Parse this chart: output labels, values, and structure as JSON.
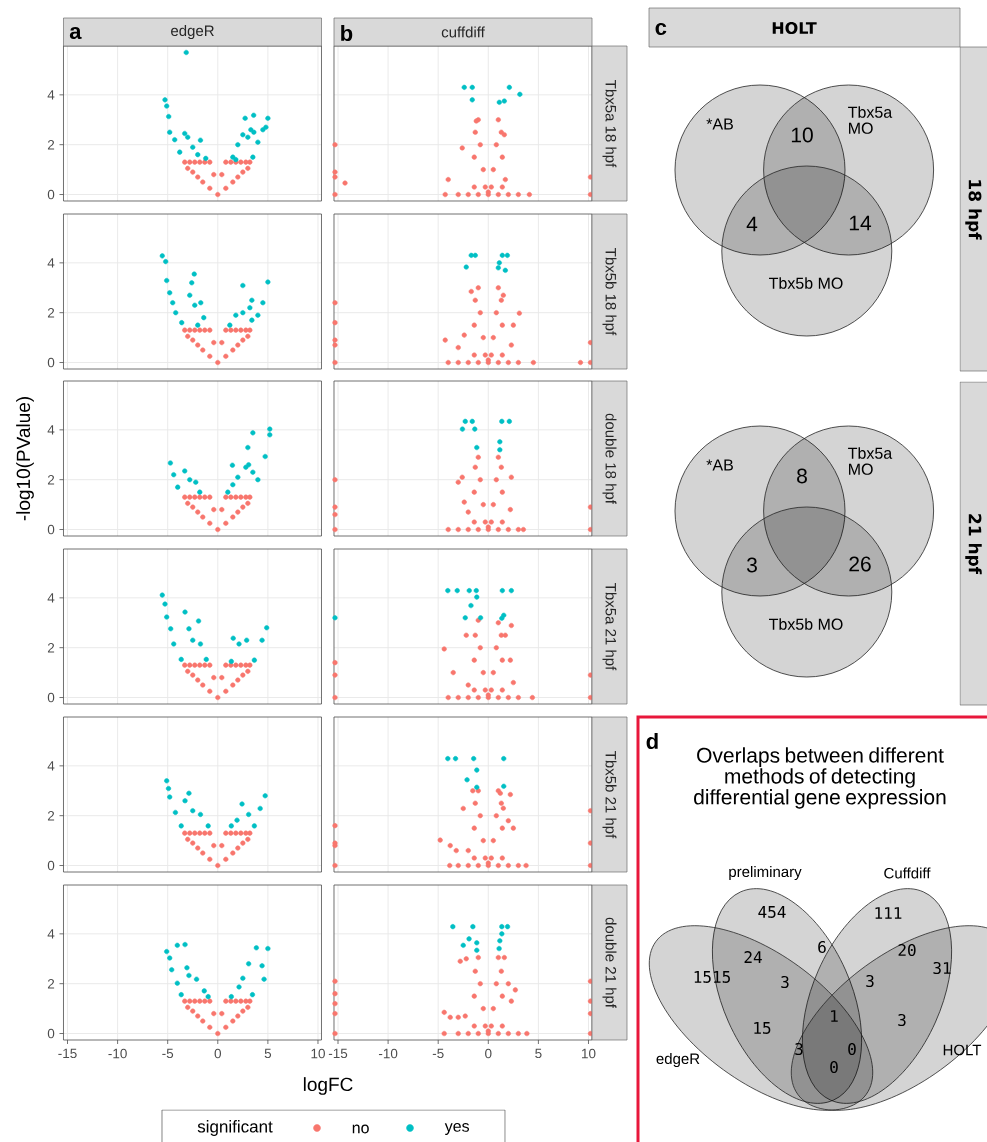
{
  "chart_data": [
    {
      "type": "scatter",
      "title": "edgeR",
      "annotations": [
        "a"
      ],
      "legend_title": "significant",
      "legend": "bottom",
      "marker": "circle",
      "grid": true,
      "tick_labels": "y",
      "xlim": [
        -15.4,
        10.35
      ],
      "ylim": [
        -0.26,
        5.96
      ],
      "xticks": [
        -15,
        -10,
        -5,
        0,
        5,
        10
      ],
      "yticks": [
        0,
        2,
        4
      ],
      "series": [
        {
          "name": "no",
          "color": "#f8766d",
          "x": [
            -3.3,
            -2.8,
            -2.3,
            -1.8,
            -1.3,
            -0.8,
            -0.4,
            0,
            0.4,
            0.8,
            1.3,
            1.8,
            2.3,
            2.8,
            3.2,
            -3.0,
            -2.5,
            -2.0,
            -1.5,
            -0.8,
            0.8,
            1.5,
            2.0,
            2.5,
            3.0
          ],
          "values": [
            1.3,
            1.3,
            1.3,
            1.3,
            1.3,
            1.3,
            0.8,
            0,
            0.8,
            1.3,
            1.3,
            1.3,
            1.3,
            1.3,
            1.3,
            1.05,
            0.9,
            0.7,
            0.5,
            0.25,
            0.25,
            0.5,
            0.7,
            0.9,
            1.05
          ]
        },
        {
          "name": "yes",
          "color": "#00bfc4",
          "x": [
            -3.15,
            -5.27,
            -5.1,
            -4.9,
            -4.8,
            -4.3,
            -3.8,
            -3.3,
            -3.0,
            -2.5,
            -1.73,
            -2.0,
            -1.2,
            1.5,
            2.0,
            2.5,
            3.0,
            3.3,
            3.6,
            3.5,
            4.0,
            4.5,
            5.0,
            3.58,
            2.73,
            4.8,
            1.8
          ],
          "values": [
            5.7,
            3.8,
            3.55,
            3.13,
            2.5,
            2.2,
            1.7,
            2.45,
            2.3,
            1.9,
            2.18,
            1.6,
            1.45,
            1.5,
            2.0,
            2.4,
            2.3,
            2.6,
            2.5,
            1.5,
            2.1,
            2.6,
            3.06,
            3.18,
            3.06,
            2.7,
            1.4
          ]
        }
      ]
    },
    {
      "type": "scatter",
      "title": "cuffdiff",
      "annotations": [
        "b"
      ],
      "y2label": "Tbx5a 18 hpf",
      "marker": "circle",
      "grid": true,
      "tick_labels": false,
      "xlim": [
        -15.4,
        10.35
      ],
      "ylim": [
        -0.26,
        5.96
      ],
      "xticks": [
        -15,
        -10,
        -5,
        0,
        5,
        10
      ],
      "yticks": [
        0,
        2,
        4
      ],
      "series": [
        {
          "color": "#f8766d",
          "x": [
            -4.3,
            -3,
            -2,
            -1,
            0,
            1,
            2,
            3,
            4.1,
            -1.4,
            -1.4,
            -1.3,
            -1.0,
            -0.8,
            -0.5,
            -0.3,
            0,
            0.3,
            0.5,
            0.8,
            1.0,
            1.3,
            1.4,
            1.4,
            -2.6,
            -4.0,
            1.7,
            -1.2,
            1.6,
            -15.3,
            -15.3,
            -15.3,
            -15.3,
            -14.3,
            10.2,
            10.2
          ],
          "values": [
            0,
            0,
            0,
            0,
            0,
            0,
            0,
            0,
            0,
            0.3,
            1.5,
            2.5,
            3.0,
            2.0,
            1.0,
            0.3,
            0.1,
            0.3,
            1.0,
            2.0,
            3.0,
            2.5,
            1.5,
            0.3,
            1.87,
            0.6,
            0.6,
            2.95,
            2.4,
            0,
            0.7,
            0.9,
            2.0,
            0.46,
            0,
            0.7
          ]
        },
        {
          "color": "#00bfc4",
          "x": [
            -2.4,
            -1.6,
            -1.6,
            2.1,
            1.6,
            1.1,
            3.15
          ],
          "values": [
            4.3,
            4.3,
            3.8,
            4.3,
            3.75,
            3.7,
            4.02
          ]
        }
      ]
    },
    {
      "type": "scatter",
      "marker": "circle",
      "grid": true,
      "tick_labels": "y",
      "xlim": [
        -15.4,
        10.35
      ],
      "ylim": [
        -0.26,
        5.96
      ],
      "xticks": [
        -15,
        -10,
        -5,
        0,
        5,
        10
      ],
      "yticks": [
        0,
        2,
        4
      ],
      "series": [
        {
          "color": "#f8766d",
          "x": [
            -3.3,
            -2.8,
            -2.3,
            -1.8,
            -1.3,
            -0.8,
            -0.4,
            0,
            0.4,
            0.8,
            1.3,
            1.8,
            2.3,
            2.8,
            3.2,
            -3.0,
            -2.5,
            -2.0,
            -1.5,
            -0.8,
            0.8,
            1.5,
            2.0,
            2.5,
            3.0
          ],
          "values": [
            1.3,
            1.3,
            1.3,
            1.3,
            1.3,
            1.3,
            0.8,
            0,
            0.8,
            1.3,
            1.3,
            1.3,
            1.3,
            1.3,
            1.3,
            1.05,
            0.9,
            0.7,
            0.5,
            0.25,
            0.25,
            0.5,
            0.7,
            0.9,
            1.05
          ]
        },
        {
          "color": "#00bfc4",
          "x": [
            -5.54,
            -5.2,
            -5.1,
            -4.8,
            -4.5,
            -4.2,
            -3.6,
            -2.35,
            -2.6,
            -2.8,
            -2.3,
            -1.7,
            -1.4,
            -2.0,
            1.2,
            1.8,
            2.5,
            3.2,
            3.4,
            3.4,
            4.0,
            4.5,
            2.5,
            5.0
          ],
          "values": [
            4.28,
            4.05,
            3.29,
            2.8,
            2.4,
            2.0,
            1.6,
            3.55,
            3.2,
            2.7,
            2.3,
            2.4,
            1.8,
            1.5,
            1.5,
            1.9,
            2.0,
            2.2,
            2.5,
            1.7,
            1.9,
            2.4,
            3.09,
            3.23
          ]
        }
      ]
    },
    {
      "type": "scatter",
      "y2label": "Tbx5b 18 hpf",
      "marker": "circle",
      "grid": true,
      "tick_labels": false,
      "xlim": [
        -15.4,
        10.35
      ],
      "ylim": [
        -0.26,
        5.96
      ],
      "xticks": [
        -15,
        -10,
        -5,
        0,
        5,
        10
      ],
      "yticks": [
        0,
        2,
        4
      ],
      "series": [
        {
          "color": "#f8766d",
          "x": [
            -4.0,
            -3,
            -2,
            -1,
            0,
            1,
            2,
            3,
            4.5,
            -1.4,
            -1.4,
            -1.3,
            -1.0,
            -0.8,
            -0.5,
            -0.3,
            0,
            0.3,
            0.5,
            0.8,
            1.0,
            1.3,
            1.4,
            1.4,
            -4.3,
            -3.0,
            3.1,
            -1.7,
            1.5,
            -2.4,
            2.3,
            2.5,
            -15.3,
            -15.3,
            -15.3,
            -15.3,
            -15.3,
            9.2,
            10.2,
            10.2
          ],
          "values": [
            0,
            0,
            0,
            0,
            0,
            0,
            0,
            0,
            0,
            0.3,
            1.5,
            2.5,
            3.0,
            2.0,
            1.0,
            0.3,
            0.1,
            0.3,
            1.0,
            2.0,
            3.0,
            2.5,
            1.5,
            0.3,
            0.9,
            0.6,
            1.98,
            2.85,
            2.7,
            1.1,
            0.7,
            1.5,
            0,
            0.7,
            0.9,
            1.6,
            2.4,
            0,
            0,
            0.8
          ]
        },
        {
          "color": "#00bfc4",
          "x": [
            -1.7,
            -1.3,
            -2.2,
            1.4,
            1.9,
            1.1,
            1.7,
            1.0
          ],
          "values": [
            4.3,
            4.3,
            3.83,
            4.3,
            4.3,
            4.0,
            3.7,
            3.8
          ]
        }
      ]
    },
    {
      "type": "scatter",
      "ylabel": "-log10(PValue)",
      "marker": "circle",
      "grid": true,
      "tick_labels": "y",
      "xlim": [
        -15.4,
        10.35
      ],
      "ylim": [
        -0.26,
        5.96
      ],
      "xticks": [
        -15,
        -10,
        -5,
        0,
        5,
        10
      ],
      "yticks": [
        0,
        2,
        4
      ],
      "series": [
        {
          "color": "#f8766d",
          "x": [
            -3.3,
            -2.8,
            -2.3,
            -1.8,
            -1.3,
            -0.8,
            -0.4,
            0,
            0.4,
            0.8,
            1.3,
            1.8,
            2.3,
            2.8,
            3.2,
            -3.0,
            -2.5,
            -2.0,
            -1.5,
            -0.8,
            0.8,
            1.5,
            2.0,
            2.5,
            3.0
          ],
          "values": [
            1.3,
            1.3,
            1.3,
            1.3,
            1.3,
            1.3,
            0.8,
            0,
            0.8,
            1.3,
            1.3,
            1.3,
            1.3,
            1.3,
            1.3,
            1.05,
            0.9,
            0.7,
            0.5,
            0.25,
            0.25,
            0.5,
            0.7,
            0.9,
            1.05
          ]
        },
        {
          "color": "#00bfc4",
          "x": [
            -4.73,
            -4.4,
            -4.0,
            -3.3,
            -2.8,
            -2.2,
            -1.8,
            1.0,
            1.5,
            2.0,
            2.8,
            3.5,
            4.0,
            3.0,
            3.5,
            5.19,
            5.19,
            4.73,
            3.08,
            1.46
          ],
          "values": [
            2.67,
            2.2,
            1.7,
            2.35,
            2.0,
            1.9,
            1.5,
            1.5,
            1.8,
            2.1,
            2.5,
            2.3,
            2.0,
            3.29,
            3.88,
            4.03,
            3.8,
            2.93,
            2.6,
            2.58
          ]
        }
      ]
    },
    {
      "type": "scatter",
      "y2label": "double 18 hpf",
      "marker": "circle",
      "grid": true,
      "tick_labels": false,
      "xlim": [
        -15.4,
        10.35
      ],
      "ylim": [
        -0.26,
        5.96
      ],
      "xticks": [
        -15,
        -10,
        -5,
        0,
        5,
        10
      ],
      "yticks": [
        0,
        2,
        4
      ],
      "series": [
        {
          "color": "#f8766d",
          "x": [
            -4.0,
            -3,
            -2,
            -1,
            0,
            1,
            2,
            3,
            3.5,
            -1.4,
            -1.4,
            -1.3,
            -1.0,
            -0.8,
            -0.5,
            -0.3,
            0,
            0.3,
            0.5,
            0.8,
            1.0,
            1.3,
            1.4,
            1.4,
            -2.6,
            -3.0,
            2.3,
            2.2,
            -2.0,
            -2.4,
            -15.3,
            -15.3,
            -15.3,
            -15.3,
            10.2,
            10.2
          ],
          "values": [
            0,
            0,
            0,
            0,
            0,
            0,
            0,
            0,
            0,
            0.3,
            1.5,
            2.5,
            2.9,
            2.0,
            1.0,
            0.3,
            0.1,
            0.3,
            1.0,
            2.0,
            2.9,
            2.5,
            1.5,
            0.3,
            2.1,
            1.9,
            2.1,
            0.8,
            0.7,
            1.1,
            0,
            0.6,
            0.9,
            2.0,
            0,
            0.9
          ]
        },
        {
          "color": "#00bfc4",
          "x": [
            -2.3,
            -1.6,
            1.35,
            2.1,
            -2.58,
            -1.35,
            -1.15,
            1.15,
            1.15
          ],
          "values": [
            4.34,
            4.34,
            4.34,
            4.34,
            4.03,
            4.03,
            3.29,
            3.52,
            3.2
          ]
        }
      ]
    },
    {
      "type": "scatter",
      "marker": "circle",
      "grid": true,
      "tick_labels": "y",
      "xlim": [
        -15.4,
        10.35
      ],
      "ylim": [
        -0.26,
        5.96
      ],
      "xticks": [
        -15,
        -10,
        -5,
        0,
        5,
        10
      ],
      "yticks": [
        0,
        2,
        4
      ],
      "series": [
        {
          "color": "#f8766d",
          "x": [
            -3.3,
            -2.8,
            -2.3,
            -1.8,
            -1.3,
            -0.8,
            -0.4,
            0,
            0.4,
            0.8,
            1.3,
            1.8,
            2.3,
            2.8,
            3.2,
            -3.0,
            -2.5,
            -2.0,
            -1.5,
            -0.8,
            0.8,
            1.5,
            2.0,
            2.5,
            3.0
          ],
          "values": [
            1.3,
            1.3,
            1.3,
            1.3,
            1.3,
            1.3,
            0.8,
            0,
            0.8,
            1.3,
            1.3,
            1.3,
            1.3,
            1.3,
            1.3,
            1.05,
            0.9,
            0.7,
            0.5,
            0.25,
            0.25,
            0.5,
            0.7,
            0.9,
            1.05
          ]
        },
        {
          "color": "#00bfc4",
          "x": [
            -5.54,
            -5.27,
            -5.1,
            -4.7,
            -4.4,
            -3.65,
            -3.27,
            -1.92,
            -2.88,
            -2.5,
            -1.73,
            -1.15,
            1.54,
            2.12,
            2.88,
            3.65,
            4.42,
            4.88,
            1.35
          ],
          "values": [
            4.11,
            3.75,
            3.23,
            2.76,
            2.15,
            1.53,
            3.43,
            3.07,
            2.76,
            2.3,
            2.15,
            1.53,
            2.38,
            2.15,
            2.3,
            1.5,
            2.3,
            2.8,
            1.45
          ]
        }
      ]
    },
    {
      "type": "scatter",
      "y2label": "Tbx5a 21 hpf",
      "marker": "circle",
      "grid": true,
      "tick_labels": false,
      "xlim": [
        -15.4,
        10.35
      ],
      "ylim": [
        -0.26,
        5.96
      ],
      "xticks": [
        -15,
        -10,
        -5,
        0,
        5,
        10
      ],
      "yticks": [
        0,
        2,
        4
      ],
      "series": [
        {
          "color": "#f8766d",
          "x": [
            -4.0,
            -3,
            -2,
            -1,
            0,
            1,
            2,
            3,
            4.4,
            -1.4,
            -1.4,
            -1.3,
            -1.0,
            -0.8,
            -0.5,
            -0.3,
            0,
            0.3,
            0.5,
            0.8,
            1.0,
            1.3,
            1.4,
            1.4,
            -2.2,
            -4.4,
            -3.5,
            2.3,
            2.2,
            2.5,
            -2.0,
            1.7,
            -15.3,
            -15.3,
            -15.3,
            10.2,
            10.2
          ],
          "values": [
            0,
            0,
            0,
            0,
            0,
            0,
            0,
            0,
            0,
            0.3,
            1.5,
            2.5,
            3.1,
            2.0,
            1.0,
            0.3,
            0.1,
            0.3,
            1.0,
            2.0,
            3.0,
            2.5,
            1.5,
            0.3,
            2.5,
            1.95,
            1.0,
            2.89,
            1.5,
            0.6,
            0.5,
            2.5,
            0,
            0.9,
            1.4,
            0,
            0.9
          ]
        },
        {
          "color": "#00bfc4",
          "x": [
            -4.04,
            -3.1,
            -1.9,
            -1.2,
            1.4,
            2.3,
            -1.15,
            -1.73,
            -2.3,
            -0.77,
            1.54,
            1.35,
            -15.3
          ],
          "values": [
            4.29,
            4.29,
            4.29,
            4.29,
            4.29,
            4.29,
            4.03,
            3.69,
            3.2,
            3.2,
            3.3,
            3.18,
            3.2
          ]
        }
      ]
    },
    {
      "type": "scatter",
      "marker": "circle",
      "grid": true,
      "tick_labels": "y",
      "xlim": [
        -15.4,
        10.35
      ],
      "ylim": [
        -0.26,
        5.96
      ],
      "xticks": [
        -15,
        -10,
        -5,
        0,
        5,
        10
      ],
      "yticks": [
        0,
        2,
        4
      ],
      "series": [
        {
          "color": "#f8766d",
          "x": [
            -3.3,
            -2.8,
            -2.3,
            -1.8,
            -1.3,
            -0.8,
            -0.4,
            0,
            0.4,
            0.8,
            1.3,
            1.8,
            2.3,
            2.8,
            3.2,
            -3.0,
            -2.5,
            -2.0,
            -1.5,
            -0.8,
            0.8,
            1.5,
            2.0,
            2.5,
            3.0
          ],
          "values": [
            1.3,
            1.3,
            1.3,
            1.3,
            1.3,
            1.3,
            0.8,
            0,
            0.8,
            1.3,
            1.3,
            1.3,
            1.3,
            1.3,
            1.3,
            1.05,
            0.9,
            0.7,
            0.5,
            0.25,
            0.25,
            0.5,
            0.7,
            0.9,
            1.05
          ]
        },
        {
          "color": "#00bfc4",
          "x": [
            -5.1,
            -4.92,
            -4.8,
            -4.23,
            -3.65,
            -2.88,
            -3.27,
            -2.5,
            -1.73,
            -0.96,
            1.35,
            1.92,
            2.42,
            3.08,
            3.65,
            4.23,
            4.73
          ],
          "values": [
            3.4,
            3.09,
            2.75,
            2.13,
            1.59,
            2.9,
            2.6,
            2.2,
            2.05,
            1.59,
            1.59,
            1.82,
            2.47,
            2.05,
            1.59,
            2.29,
            2.8
          ]
        }
      ]
    },
    {
      "type": "scatter",
      "y2label": "Tbx5b 21 hpf",
      "marker": "circle",
      "grid": true,
      "tick_labels": false,
      "xlim": [
        -15.4,
        10.35
      ],
      "ylim": [
        -0.26,
        5.96
      ],
      "xticks": [
        -15,
        -10,
        -5,
        0,
        5,
        10
      ],
      "yticks": [
        0,
        2,
        4
      ],
      "series": [
        {
          "color": "#f8766d",
          "x": [
            -3.85,
            -3,
            -2,
            -1,
            0,
            1,
            2,
            3,
            3.77,
            -1.4,
            -1.4,
            -1.3,
            -1.0,
            -0.8,
            -0.5,
            -0.3,
            0,
            0.3,
            0.5,
            0.8,
            1.0,
            1.3,
            1.4,
            1.4,
            -4.8,
            -3.8,
            -3.2,
            -2.5,
            -1.55,
            1.2,
            2.2,
            2.0,
            1.5,
            2.5,
            -2.0,
            -15.3,
            -15.3,
            -15.3,
            -15.3,
            10.2,
            10.2,
            10.2
          ],
          "values": [
            0,
            0,
            0,
            0,
            0,
            0,
            0,
            0,
            0,
            0.3,
            1.5,
            2.5,
            3.0,
            2.0,
            1.0,
            0.3,
            0.1,
            0.3,
            1.0,
            2.0,
            3.0,
            2.5,
            1.5,
            0.3,
            1.02,
            0.8,
            0.6,
            2.29,
            3.0,
            2.9,
            2.85,
            1.8,
            2.3,
            1.5,
            0.6,
            0,
            0.8,
            0.9,
            1.6,
            0,
            0.9,
            2.2
          ]
        },
        {
          "color": "#00bfc4",
          "x": [
            -4.04,
            -3.27,
            -1.46,
            1.54,
            -1.15,
            -2.12,
            -1.15,
            1.54
          ],
          "values": [
            4.29,
            4.29,
            4.29,
            4.29,
            3.83,
            3.44,
            3.14,
            3.18
          ]
        }
      ]
    },
    {
      "type": "scatter",
      "xlabel": "logFC",
      "marker": "circle",
      "grid": true,
      "xlim": [
        -15.4,
        10.35
      ],
      "ylim": [
        -0.26,
        5.96
      ],
      "xticks": [
        -15,
        -10,
        -5,
        0,
        5,
        10
      ],
      "yticks": [
        0,
        2,
        4
      ],
      "series": [
        {
          "color": "#f8766d",
          "x": [
            -3.3,
            -2.8,
            -2.3,
            -1.8,
            -1.3,
            -0.8,
            -0.4,
            0,
            0.4,
            0.8,
            1.3,
            1.8,
            2.3,
            2.8,
            3.2,
            -3.0,
            -2.5,
            -2.0,
            -1.5,
            -0.8,
            0.8,
            1.5,
            2.0,
            2.5,
            3.0
          ],
          "values": [
            1.3,
            1.3,
            1.3,
            1.3,
            1.3,
            1.3,
            0.8,
            0,
            0.8,
            1.3,
            1.3,
            1.3,
            1.3,
            1.3,
            1.3,
            1.05,
            0.9,
            0.7,
            0.5,
            0.25,
            0.25,
            0.5,
            0.7,
            0.9,
            1.05
          ]
        },
        {
          "color": "#00bfc4",
          "x": [
            -5.1,
            -4.8,
            -4.6,
            -4.04,
            -3.65,
            -4.04,
            -3.27,
            -3.08,
            -2.88,
            -2.12,
            -1.35,
            -0.96,
            1.35,
            2.12,
            2.5,
            3.08,
            3.85,
            5.0,
            4.42,
            4.62,
            3.46
          ],
          "values": [
            3.29,
            3.03,
            2.56,
            2.02,
            1.56,
            3.54,
            3.57,
            2.64,
            2.33,
            2.18,
            1.71,
            1.48,
            1.48,
            1.87,
            2.22,
            2.8,
            3.44,
            3.41,
            2.72,
            2.18,
            1.56
          ]
        }
      ]
    },
    {
      "type": "scatter",
      "y2label": "double 21 hpf",
      "marker": "circle",
      "grid": true,
      "tick_labels": "x",
      "xlim": [
        -15.4,
        10.35
      ],
      "ylim": [
        -0.26,
        5.96
      ],
      "xticks": [
        -15,
        -10,
        -5,
        0,
        5,
        10
      ],
      "yticks": [
        0,
        2,
        4
      ],
      "series": [
        {
          "color": "#f8766d",
          "x": [
            -4.4,
            -3,
            -2,
            -1,
            0,
            1,
            2,
            3,
            3.85,
            -1.4,
            -1.4,
            -1.3,
            -1.0,
            -0.8,
            -0.5,
            -0.3,
            0,
            0.3,
            0.5,
            0.8,
            1.0,
            1.3,
            1.4,
            1.4,
            -4.4,
            -3.8,
            -3.0,
            -2.3,
            2.7,
            2.0,
            -2.2,
            -2.8,
            1.6,
            2.3,
            -15.3,
            -15.3,
            -15.3,
            -15.3,
            -15.3,
            10.2,
            10.2,
            10.2,
            10.2
          ],
          "values": [
            0,
            0,
            0,
            0,
            0,
            0,
            0,
            0,
            0,
            0.3,
            1.5,
            2.5,
            3.05,
            2.0,
            1.0,
            0.3,
            0.1,
            0.3,
            1.0,
            2.0,
            3.05,
            2.5,
            1.5,
            0.3,
            0.85,
            0.65,
            0.65,
            0.7,
            1.75,
            2.0,
            3.0,
            2.9,
            3.05,
            1.3,
            0,
            0.8,
            1.2,
            1.6,
            2.1,
            0,
            0.8,
            1.3,
            2.1
          ]
        },
        {
          "color": "#00bfc4",
          "x": [
            -3.54,
            -1.54,
            1.35,
            1.92,
            -2.5,
            -1.92,
            -1.15,
            -1.15,
            1.15,
            1.08,
            1.35
          ],
          "values": [
            4.29,
            4.29,
            4.29,
            4.29,
            3.54,
            3.8,
            3.64,
            3.34,
            3.72,
            3.41,
            4.0
          ]
        }
      ]
    },
    {
      "type": "other",
      "title": "HOLT",
      "annotations": [
        "c",
        "10",
        "4",
        "14"
      ],
      "y2label": "18 hpf",
      "categories": [
        "*AB",
        "Tbx5a MO",
        "Tbx5b MO"
      ]
    },
    {
      "type": "other",
      "y2label": "21 hpf",
      "categories": [
        "*AB",
        "Tbx5a MO",
        "Tbx5b MO"
      ],
      "annotations": [
        "8",
        "3",
        "26"
      ]
    },
    {
      "type": "other",
      "title": "Overlaps between different methods of detecting differential gene expression",
      "annotations": [
        "d",
        "454",
        "111",
        "1515",
        "31",
        "24",
        "6",
        "20",
        "3",
        "3",
        "15",
        "1",
        "3",
        "3",
        "0",
        "0"
      ],
      "categories": [
        "preliminary",
        "Cuffdiff",
        "edgeR",
        "HOLT"
      ]
    }
  ]
}
